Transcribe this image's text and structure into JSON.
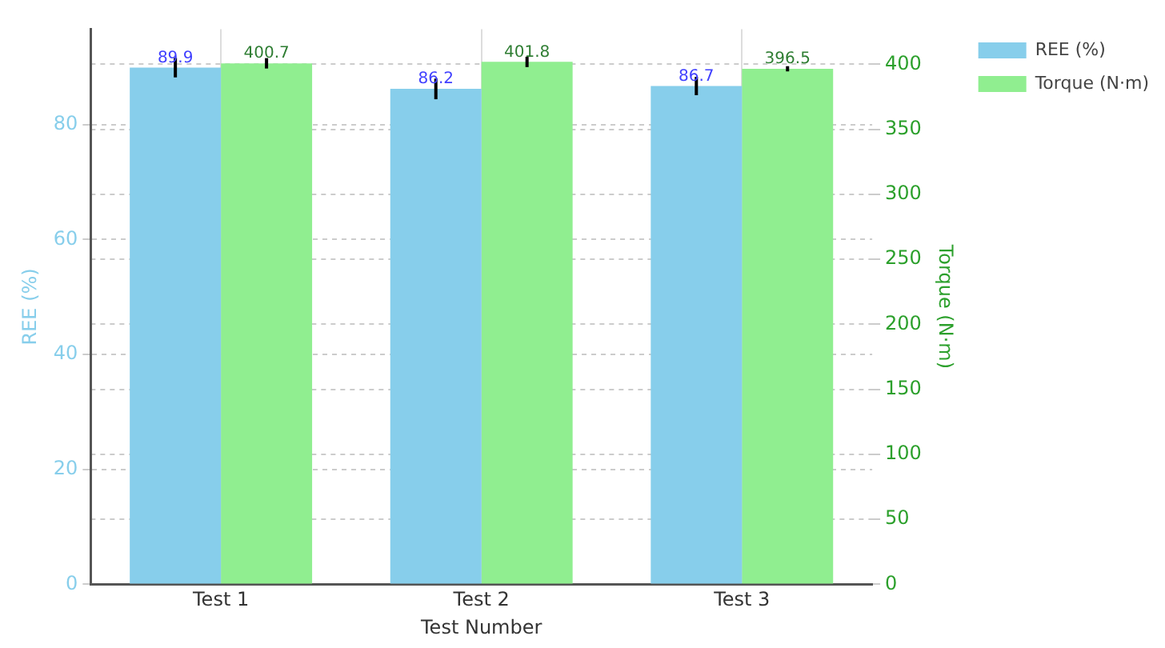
{
  "chart_data": {
    "type": "bar",
    "xlabel": "Test Number",
    "ylabel": "REE (%)",
    "y2label": "Torque (N·m)",
    "categories": [
      "Test 1",
      "Test 2",
      "Test 3"
    ],
    "series": [
      {
        "name": "REE (%)",
        "color": "#87ceeb",
        "values": [
          89.9,
          86.2,
          86.7
        ],
        "errors": [
          1.7,
          1.8,
          1.6
        ]
      },
      {
        "name": "Torque (N·m)",
        "color": "#90ee90",
        "axis": "y2",
        "values": [
          400.7,
          401.8,
          396.5
        ],
        "errors": [
          4,
          4,
          2
        ]
      }
    ],
    "ylim": [
      0,
      96.6
    ],
    "yticks": [
      0,
      20,
      40,
      60,
      80
    ],
    "y2lim": [
      0,
      427
    ],
    "y2ticks": [
      0,
      50,
      100,
      150,
      200,
      250,
      300,
      350,
      400
    ],
    "grid": true,
    "legend": "top right",
    "data_labels": true
  }
}
